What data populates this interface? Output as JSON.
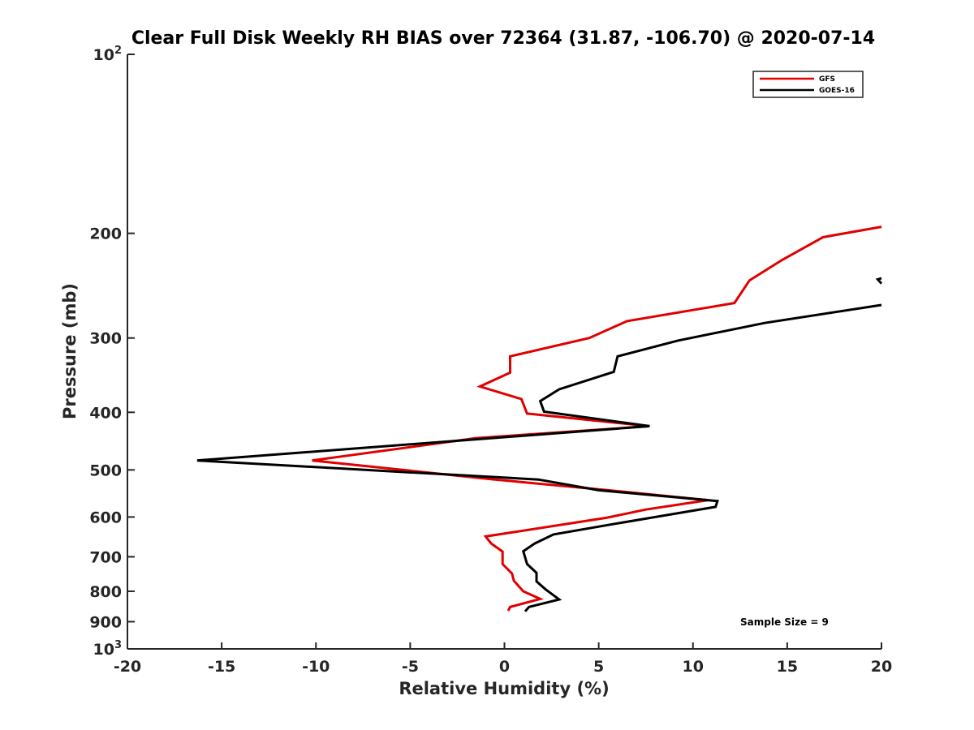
{
  "chart_data": {
    "type": "line",
    "title": "Clear Full Disk Weekly RH BIAS over 72364 (31.87, -106.70) @ 2020-07-14",
    "xlabel": "Relative Humidity (%)",
    "ylabel": "Pressure (mb)",
    "xlim": [
      -20,
      20
    ],
    "ylim": [
      100,
      1000
    ],
    "y_scale": "log",
    "y_reversed": true,
    "grid": false,
    "legend_position": "top-right",
    "x_ticks": [
      {
        "value": -20,
        "label": "-20"
      },
      {
        "value": -15,
        "label": "-15"
      },
      {
        "value": -10,
        "label": "-10"
      },
      {
        "value": -5,
        "label": "-5"
      },
      {
        "value": 0,
        "label": "0"
      },
      {
        "value": 5,
        "label": "5"
      },
      {
        "value": 10,
        "label": "10"
      },
      {
        "value": 15,
        "label": "15"
      },
      {
        "value": 20,
        "label": "20"
      }
    ],
    "y_ticks": [
      {
        "value": 100,
        "base": "10",
        "exp": "2"
      },
      {
        "value": 200,
        "label": "200"
      },
      {
        "value": 300,
        "label": "300"
      },
      {
        "value": 400,
        "label": "400"
      },
      {
        "value": 500,
        "label": "500"
      },
      {
        "value": 600,
        "label": "600"
      },
      {
        "value": 700,
        "label": "700"
      },
      {
        "value": 800,
        "label": "800"
      },
      {
        "value": 900,
        "label": "900"
      },
      {
        "value": 1000,
        "base": "10",
        "exp": "3"
      }
    ],
    "series": [
      {
        "name": "GFS",
        "color": "#e00000",
        "points": [
          {
            "x": 20.0,
            "y": 195
          },
          {
            "x": 16.9,
            "y": 203
          },
          {
            "x": 14.7,
            "y": 222
          },
          {
            "x": 13.0,
            "y": 240
          },
          {
            "x": 12.2,
            "y": 262
          },
          {
            "x": 6.5,
            "y": 281
          },
          {
            "x": 4.5,
            "y": 300
          },
          {
            "x": 0.3,
            "y": 322
          },
          {
            "x": 0.3,
            "y": 343
          },
          {
            "x": -1.3,
            "y": 362
          },
          {
            "x": 0.9,
            "y": 380
          },
          {
            "x": 1.2,
            "y": 402
          },
          {
            "x": 7.7,
            "y": 422
          },
          {
            "x": -1.5,
            "y": 442
          },
          {
            "x": -10.2,
            "y": 482
          },
          {
            "x": -0.5,
            "y": 519
          },
          {
            "x": 5.5,
            "y": 541
          },
          {
            "x": 10.8,
            "y": 562
          },
          {
            "x": 7.5,
            "y": 583
          },
          {
            "x": 5.4,
            "y": 602
          },
          {
            "x": -1.0,
            "y": 647
          },
          {
            "x": -0.7,
            "y": 665
          },
          {
            "x": -0.1,
            "y": 686
          },
          {
            "x": -0.1,
            "y": 720
          },
          {
            "x": 0.4,
            "y": 747
          },
          {
            "x": 0.5,
            "y": 768
          },
          {
            "x": 1.0,
            "y": 800
          },
          {
            "x": 1.9,
            "y": 824
          },
          {
            "x": 0.3,
            "y": 850
          },
          {
            "x": 0.2,
            "y": 863
          }
        ]
      },
      {
        "name": "GOES-16",
        "color": "#000000",
        "segments": [
          [
            {
              "x": 20.0,
              "y": 238
            },
            {
              "x": 19.8,
              "y": 239
            },
            {
              "x": 20.0,
              "y": 243
            }
          ],
          [
            {
              "x": 20.0,
              "y": 264
            },
            {
              "x": 13.8,
              "y": 283
            },
            {
              "x": 9.2,
              "y": 303
            },
            {
              "x": 6.0,
              "y": 322
            },
            {
              "x": 5.8,
              "y": 342
            },
            {
              "x": 2.9,
              "y": 366
            },
            {
              "x": 1.9,
              "y": 383
            },
            {
              "x": 2.1,
              "y": 399
            },
            {
              "x": 7.7,
              "y": 422
            },
            {
              "x": -16.3,
              "y": 482
            },
            {
              "x": 1.8,
              "y": 519
            },
            {
              "x": 5.0,
              "y": 541
            },
            {
              "x": 11.3,
              "y": 564
            },
            {
              "x": 11.2,
              "y": 577
            },
            {
              "x": 5.6,
              "y": 618
            },
            {
              "x": 2.6,
              "y": 642
            },
            {
              "x": 1.6,
              "y": 665
            },
            {
              "x": 1.0,
              "y": 685
            },
            {
              "x": 1.2,
              "y": 720
            },
            {
              "x": 1.7,
              "y": 745
            },
            {
              "x": 1.7,
              "y": 770
            },
            {
              "x": 2.2,
              "y": 795
            },
            {
              "x": 2.9,
              "y": 826
            },
            {
              "x": 1.3,
              "y": 850
            },
            {
              "x": 1.1,
              "y": 865
            }
          ]
        ]
      }
    ],
    "annotation": "Sample Size = 9"
  }
}
